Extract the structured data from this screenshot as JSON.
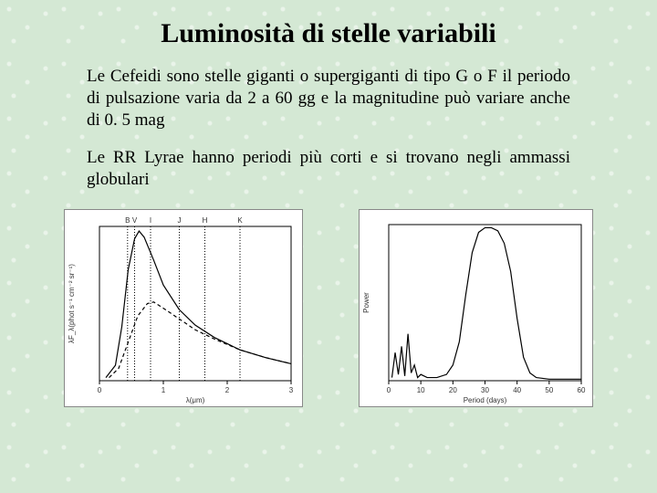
{
  "title": "Luminosità di stelle variabili",
  "paragraph1": "Le Cefeidi sono stelle giganti o supergiganti di tipo G o F  il periodo di pulsazione varia da 2 a 60 gg e la magnitudine può variare anche di 0. 5 mag",
  "paragraph2": "Le RR Lyrae hanno periodi più corti e si trovano negli ammassi globulari",
  "chart_left": {
    "type": "line",
    "background_color": "#ffffff",
    "line_color": "#000000",
    "xlabel": "λ(μm)",
    "ylabel": "λF_λ(phot s⁻¹ cm⁻² sr⁻¹)",
    "xlim": [
      0,
      3
    ],
    "xticks": [
      0,
      1,
      2,
      3
    ],
    "bands": [
      {
        "label": "B",
        "x": 0.44
      },
      {
        "label": "V",
        "x": 0.55
      },
      {
        "label": "I",
        "x": 0.8
      },
      {
        "label": "J",
        "x": 1.25
      },
      {
        "label": "H",
        "x": 1.65
      },
      {
        "label": "K",
        "x": 2.2
      }
    ],
    "curve_solid": [
      [
        0.1,
        0.02
      ],
      [
        0.25,
        0.1
      ],
      [
        0.35,
        0.35
      ],
      [
        0.45,
        0.72
      ],
      [
        0.55,
        0.92
      ],
      [
        0.62,
        0.97
      ],
      [
        0.7,
        0.93
      ],
      [
        0.85,
        0.78
      ],
      [
        1.0,
        0.62
      ],
      [
        1.25,
        0.46
      ],
      [
        1.5,
        0.36
      ],
      [
        1.8,
        0.28
      ],
      [
        2.2,
        0.2
      ],
      [
        2.6,
        0.15
      ],
      [
        3.0,
        0.11
      ]
    ],
    "curve_dashed": [
      [
        0.15,
        0.02
      ],
      [
        0.3,
        0.08
      ],
      [
        0.45,
        0.25
      ],
      [
        0.6,
        0.42
      ],
      [
        0.75,
        0.5
      ],
      [
        0.85,
        0.51
      ],
      [
        1.0,
        0.47
      ],
      [
        1.25,
        0.4
      ],
      [
        1.5,
        0.33
      ],
      [
        1.8,
        0.27
      ],
      [
        2.2,
        0.2
      ],
      [
        2.6,
        0.15
      ],
      [
        3.0,
        0.11
      ]
    ]
  },
  "chart_right": {
    "type": "line",
    "background_color": "#ffffff",
    "line_color": "#000000",
    "xlabel": "Period (days)",
    "ylabel": "Power",
    "xlim": [
      0,
      60
    ],
    "xticks": [
      0,
      10,
      20,
      30,
      40,
      50,
      60
    ],
    "curve": [
      [
        1,
        0.02
      ],
      [
        2,
        0.18
      ],
      [
        3,
        0.04
      ],
      [
        4,
        0.22
      ],
      [
        5,
        0.03
      ],
      [
        6,
        0.3
      ],
      [
        7,
        0.05
      ],
      [
        8,
        0.1
      ],
      [
        9,
        0.02
      ],
      [
        10,
        0.04
      ],
      [
        12,
        0.02
      ],
      [
        15,
        0.02
      ],
      [
        18,
        0.04
      ],
      [
        20,
        0.1
      ],
      [
        22,
        0.25
      ],
      [
        24,
        0.55
      ],
      [
        26,
        0.82
      ],
      [
        28,
        0.95
      ],
      [
        30,
        0.98
      ],
      [
        32,
        0.98
      ],
      [
        34,
        0.96
      ],
      [
        36,
        0.88
      ],
      [
        38,
        0.7
      ],
      [
        40,
        0.4
      ],
      [
        42,
        0.15
      ],
      [
        44,
        0.05
      ],
      [
        46,
        0.02
      ],
      [
        50,
        0.01
      ],
      [
        55,
        0.01
      ],
      [
        60,
        0.01
      ]
    ]
  }
}
